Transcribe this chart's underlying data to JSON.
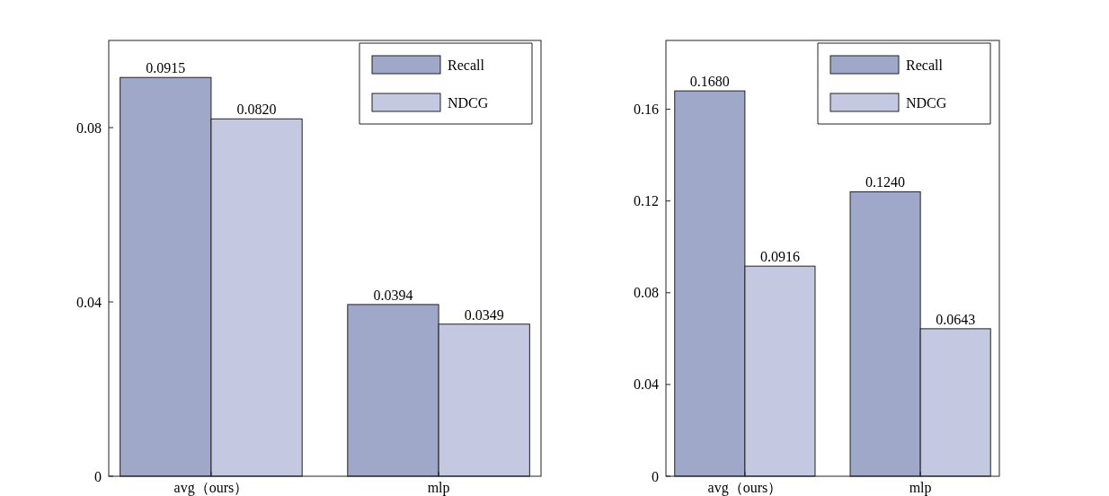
{
  "chart_data": [
    {
      "type": "bar",
      "categories": [
        "avg（ours）",
        "mlp"
      ],
      "series": [
        {
          "name": "Recall",
          "color": "#9fa8c9",
          "values": [
            0.0915,
            0.0394
          ],
          "value_labels": [
            "0.0915",
            "0.0394"
          ]
        },
        {
          "name": "NDCG",
          "color": "#c4c8e0",
          "values": [
            0.082,
            0.0349
          ],
          "value_labels": [
            "0.0820",
            "0.0349"
          ]
        }
      ],
      "ylim": [
        0,
        0.1
      ],
      "yticks": [
        0,
        0.04,
        0.08
      ],
      "legend": "top right",
      "grid": false
    },
    {
      "type": "bar",
      "categories": [
        "avg（ours）",
        "mlp"
      ],
      "series": [
        {
          "name": "Recall",
          "color": "#9fa8c9",
          "values": [
            0.168,
            0.124
          ],
          "value_labels": [
            "0.1680",
            "0.1240"
          ]
        },
        {
          "name": "NDCG",
          "color": "#c4c8e0",
          "values": [
            0.0916,
            0.0643
          ],
          "value_labels": [
            "0.0916",
            "0.0643"
          ]
        }
      ],
      "ylim": [
        0,
        0.19
      ],
      "yticks": [
        0,
        0.04,
        0.08,
        0.12,
        0.16
      ],
      "legend": "top right",
      "grid": false
    }
  ]
}
